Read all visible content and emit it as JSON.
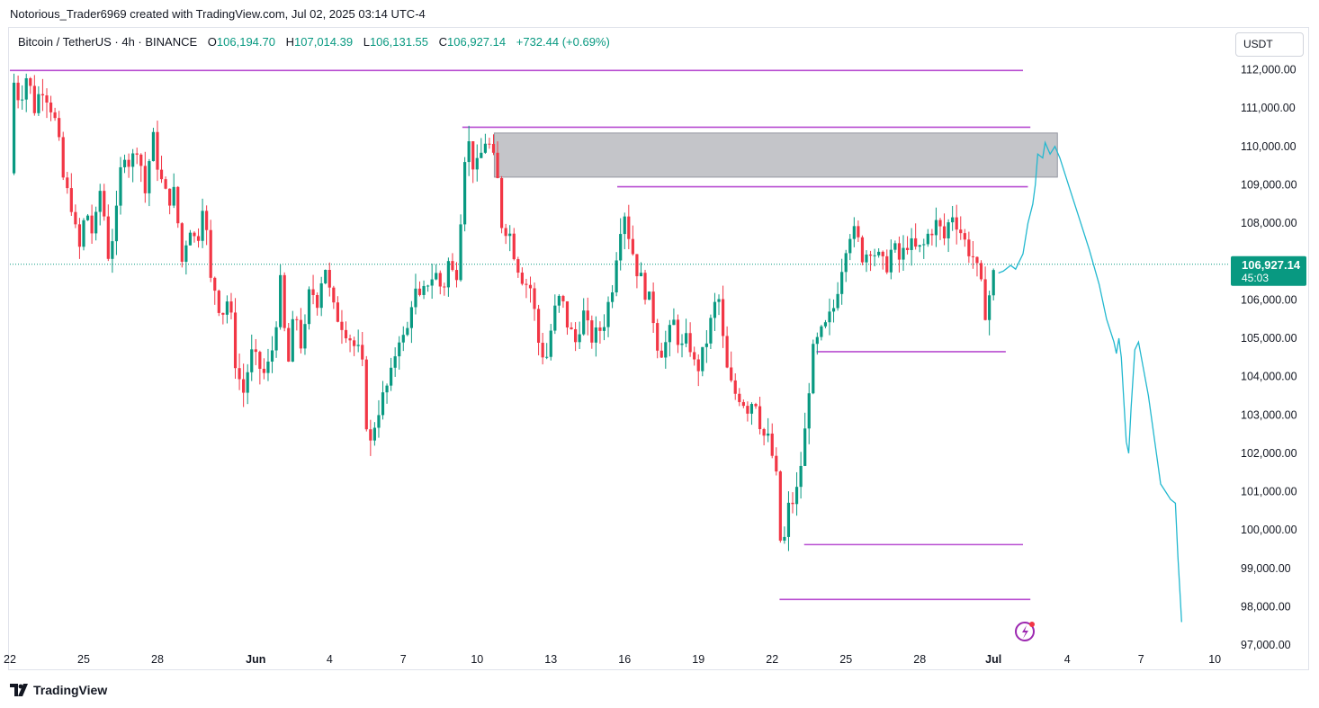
{
  "header": {
    "attribution": "Notorious_Trader6969 created with TradingView.com, Jul 02, 2025 03:14 UTC-4"
  },
  "legend": {
    "symbol": "Bitcoin / TetherUS · 4h · BINANCE",
    "open_label": "O",
    "open": "106,194.70",
    "high_label": "H",
    "high": "107,014.39",
    "low_label": "L",
    "low": "106,131.55",
    "close_label": "C",
    "close": "106,927.14",
    "change": "+732.44 (+0.69%)"
  },
  "currency_button": "USDT",
  "price_tag": {
    "price": "106,927.14",
    "countdown": "45:03"
  },
  "footer": {
    "brand": "TradingView"
  },
  "colors": {
    "up": "#089981",
    "down": "#f23645",
    "level": "#b84ed1",
    "zone_fill": "#c4c5c9",
    "projection": "#22b8cf",
    "price_tag_bg": "#089981"
  },
  "chart_data": {
    "type": "candlestick",
    "symbol": "Bitcoin / TetherUS",
    "interval": "4h",
    "exchange": "BINANCE",
    "y_ticks": [
      112000,
      111000,
      110000,
      109000,
      108000,
      107000,
      106000,
      105000,
      104000,
      103000,
      102000,
      101000,
      100000,
      99000,
      98000,
      97000
    ],
    "y_tick_labels": [
      "112,000.00",
      "111,000.00",
      "110,000.00",
      "109,000.00",
      "108,000.00",
      "",
      "106,000.00",
      "105,000.00",
      "104,000.00",
      "103,000.00",
      "102,000.00",
      "101,000.00",
      "100,000.00",
      "99,000.00",
      "98,000.00",
      "97,000.00"
    ],
    "ylim": [
      96900,
      112800
    ],
    "x_ticks": [
      {
        "day": 22,
        "label": "22"
      },
      {
        "day": 25,
        "label": "25"
      },
      {
        "day": 28,
        "label": "28"
      },
      {
        "day": 32,
        "label": "Jun"
      },
      {
        "day": 35,
        "label": "4"
      },
      {
        "day": 38,
        "label": "7"
      },
      {
        "day": 41,
        "label": "10"
      },
      {
        "day": 44,
        "label": "13"
      },
      {
        "day": 47,
        "label": "16"
      },
      {
        "day": 50,
        "label": "19"
      },
      {
        "day": 53,
        "label": "22"
      },
      {
        "day": 56,
        "label": "25"
      },
      {
        "day": 59,
        "label": "28"
      },
      {
        "day": 62,
        "label": "Jul"
      },
      {
        "day": 65,
        "label": "4"
      },
      {
        "day": 68,
        "label": "7"
      },
      {
        "day": 71,
        "label": "10"
      }
    ],
    "xlim": [
      22,
      73
    ],
    "last_price": 106927.14,
    "anchors": [
      [
        22.0,
        109300
      ],
      [
        22.1,
        111800
      ],
      [
        22.4,
        111200
      ],
      [
        22.7,
        111900
      ],
      [
        23.0,
        111000
      ],
      [
        23.3,
        111600
      ],
      [
        23.6,
        111200
      ],
      [
        23.9,
        110500
      ],
      [
        24.2,
        109000
      ],
      [
        24.5,
        108500
      ],
      [
        24.8,
        107200
      ],
      [
        25.1,
        108400
      ],
      [
        25.4,
        107600
      ],
      [
        25.7,
        109000
      ],
      [
        26.0,
        107200
      ],
      [
        26.3,
        108000
      ],
      [
        26.6,
        110000
      ],
      [
        26.9,
        109500
      ],
      [
        27.2,
        110100
      ],
      [
        27.5,
        108800
      ],
      [
        27.8,
        110300
      ],
      [
        28.1,
        109200
      ],
      [
        28.4,
        108600
      ],
      [
        28.7,
        108800
      ],
      [
        29.0,
        107000
      ],
      [
        29.3,
        108000
      ],
      [
        29.6,
        107400
      ],
      [
        29.9,
        108900
      ],
      [
        30.1,
        106500
      ],
      [
        30.3,
        106400
      ],
      [
        30.6,
        105600
      ],
      [
        30.9,
        106100
      ],
      [
        31.2,
        104200
      ],
      [
        31.5,
        103600
      ],
      [
        31.8,
        104600
      ],
      [
        32.1,
        104300
      ],
      [
        32.4,
        104000
      ],
      [
        32.7,
        104800
      ],
      [
        33.0,
        106400
      ],
      [
        33.3,
        104200
      ],
      [
        33.6,
        105800
      ],
      [
        33.9,
        104600
      ],
      [
        34.2,
        106300
      ],
      [
        34.5,
        106000
      ],
      [
        34.8,
        107000
      ],
      [
        35.1,
        105800
      ],
      [
        35.4,
        105500
      ],
      [
        35.7,
        105200
      ],
      [
        36.0,
        104800
      ],
      [
        36.3,
        104500
      ],
      [
        36.6,
        102000
      ],
      [
        36.9,
        103000
      ],
      [
        37.2,
        103500
      ],
      [
        37.5,
        104000
      ],
      [
        37.8,
        105100
      ],
      [
        38.1,
        104900
      ],
      [
        38.4,
        106300
      ],
      [
        38.7,
        105900
      ],
      [
        39.0,
        106500
      ],
      [
        39.3,
        106700
      ],
      [
        39.6,
        106200
      ],
      [
        39.9,
        107200
      ],
      [
        40.1,
        106200
      ],
      [
        40.3,
        107900
      ],
      [
        40.5,
        109800
      ],
      [
        40.7,
        110100
      ],
      [
        40.9,
        109300
      ],
      [
        41.1,
        109600
      ],
      [
        41.3,
        110200
      ],
      [
        41.5,
        110000
      ],
      [
        41.8,
        109300
      ],
      [
        42.0,
        108000
      ],
      [
        42.3,
        107800
      ],
      [
        42.6,
        107000
      ],
      [
        42.9,
        106500
      ],
      [
        43.2,
        106300
      ],
      [
        43.5,
        104900
      ],
      [
        43.8,
        104400
      ],
      [
        44.1,
        105600
      ],
      [
        44.4,
        106100
      ],
      [
        44.7,
        105300
      ],
      [
        45.0,
        104900
      ],
      [
        45.3,
        105700
      ],
      [
        45.6,
        105000
      ],
      [
        45.9,
        105100
      ],
      [
        46.2,
        105500
      ],
      [
        46.5,
        106400
      ],
      [
        46.8,
        107900
      ],
      [
        47.0,
        108300
      ],
      [
        47.2,
        107600
      ],
      [
        47.5,
        106800
      ],
      [
        47.8,
        106300
      ],
      [
        48.1,
        105800
      ],
      [
        48.4,
        104600
      ],
      [
        48.7,
        104900
      ],
      [
        49.0,
        105400
      ],
      [
        49.3,
        104700
      ],
      [
        49.6,
        105000
      ],
      [
        49.9,
        104100
      ],
      [
        50.2,
        104600
      ],
      [
        50.5,
        105400
      ],
      [
        50.8,
        106200
      ],
      [
        51.1,
        104300
      ],
      [
        51.4,
        103600
      ],
      [
        51.7,
        103500
      ],
      [
        52.0,
        103200
      ],
      [
        52.3,
        103500
      ],
      [
        52.6,
        102500
      ],
      [
        52.9,
        102300
      ],
      [
        53.2,
        101200
      ],
      [
        53.4,
        99000
      ],
      [
        53.6,
        100500
      ],
      [
        53.8,
        100700
      ],
      [
        54.0,
        101000
      ],
      [
        54.3,
        102300
      ],
      [
        54.6,
        104500
      ],
      [
        54.9,
        105000
      ],
      [
        55.2,
        105300
      ],
      [
        55.5,
        105800
      ],
      [
        55.8,
        106800
      ],
      [
        56.1,
        107800
      ],
      [
        56.4,
        107700
      ],
      [
        56.7,
        107100
      ],
      [
        57.0,
        107400
      ],
      [
        57.3,
        107100
      ],
      [
        57.6,
        106800
      ],
      [
        57.9,
        107400
      ],
      [
        58.2,
        107000
      ],
      [
        58.5,
        107500
      ],
      [
        58.8,
        107300
      ],
      [
        59.1,
        107300
      ],
      [
        59.4,
        107800
      ],
      [
        59.7,
        108000
      ],
      [
        60.0,
        107600
      ],
      [
        60.3,
        108300
      ],
      [
        60.6,
        107900
      ],
      [
        60.9,
        107400
      ],
      [
        61.2,
        107100
      ],
      [
        61.5,
        106300
      ],
      [
        61.7,
        105600
      ],
      [
        61.9,
        106400
      ],
      [
        62.1,
        106900
      ]
    ],
    "levels": [
      {
        "price": 111980,
        "from_day": 22.0,
        "to_day": 63.2
      },
      {
        "price": 110500,
        "from_day": 40.4,
        "to_day": 63.5
      },
      {
        "price": 108950,
        "from_day": 46.7,
        "to_day": 63.4
      },
      {
        "price": 104650,
        "from_day": 54.8,
        "to_day": 62.5
      },
      {
        "price": 99620,
        "from_day": 54.3,
        "to_day": 63.2
      },
      {
        "price": 98190,
        "from_day": 53.3,
        "to_day": 63.5
      }
    ],
    "zones": [
      {
        "y_top": 110350,
        "y_bottom": 109200,
        "from_day": 41.7,
        "to_day": 64.6
      }
    ],
    "projection": [
      [
        62.2,
        106700
      ],
      [
        62.4,
        106750
      ],
      [
        62.7,
        106900
      ],
      [
        62.9,
        106800
      ],
      [
        63.2,
        107200
      ],
      [
        63.4,
        108000
      ],
      [
        63.6,
        108500
      ],
      [
        63.7,
        109000
      ],
      [
        63.8,
        109800
      ],
      [
        64.0,
        109700
      ],
      [
        64.1,
        110100
      ],
      [
        64.3,
        109800
      ],
      [
        64.5,
        110000
      ],
      [
        64.7,
        109700
      ],
      [
        65.1,
        108900
      ],
      [
        65.5,
        108100
      ],
      [
        65.9,
        107300
      ],
      [
        66.3,
        106400
      ],
      [
        66.6,
        105500
      ],
      [
        66.9,
        104900
      ],
      [
        67.0,
        104600
      ],
      [
        67.1,
        105000
      ],
      [
        67.2,
        104500
      ],
      [
        67.3,
        103400
      ],
      [
        67.4,
        102300
      ],
      [
        67.5,
        102000
      ],
      [
        67.6,
        103200
      ],
      [
        67.75,
        104700
      ],
      [
        67.9,
        104900
      ],
      [
        68.3,
        103500
      ],
      [
        68.8,
        101200
      ],
      [
        69.0,
        101000
      ],
      [
        69.2,
        100800
      ],
      [
        69.4,
        100700
      ],
      [
        69.5,
        99300
      ],
      [
        69.6,
        98200
      ],
      [
        69.65,
        97600
      ]
    ]
  }
}
